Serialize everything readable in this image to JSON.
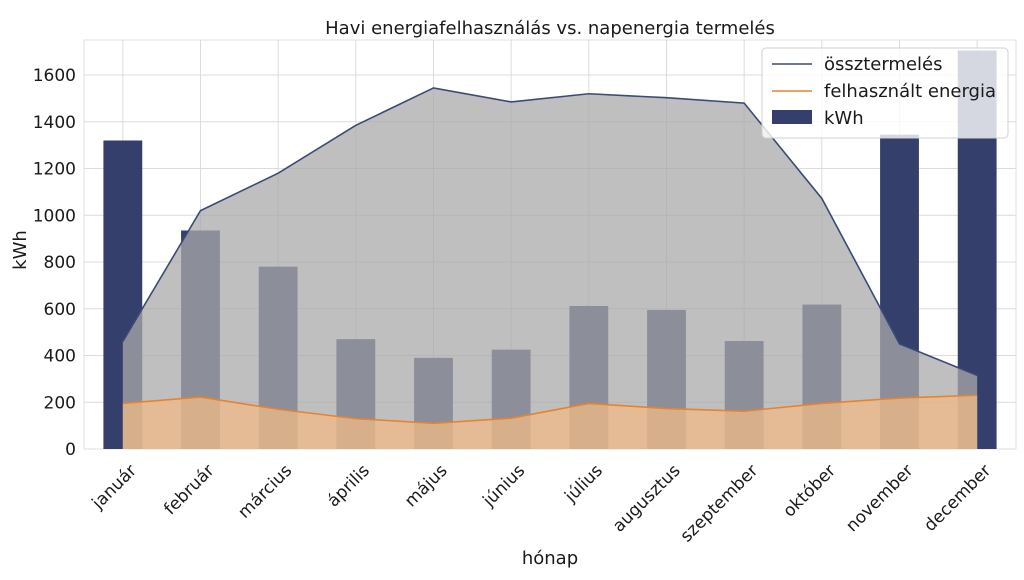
{
  "chart_data": {
    "type": "bar",
    "title": "Havi energiafelhasználás vs. napenergia termelés",
    "xlabel": "hónap",
    "ylabel": "kWh",
    "ylim": [
      0,
      1750
    ],
    "yticks": [
      0,
      200,
      400,
      600,
      800,
      1000,
      1200,
      1400,
      1600
    ],
    "grid": true,
    "legend_position": "top-right",
    "categories": [
      "január",
      "február",
      "március",
      "április",
      "május",
      "június",
      "július",
      "augusztus",
      "szeptember",
      "október",
      "november",
      "december"
    ],
    "series": [
      {
        "name": "kWh",
        "kind": "bar",
        "color": "#343f6b",
        "values": [
          1320,
          935,
          780,
          470,
          390,
          425,
          612,
          595,
          462,
          618,
          1345,
          1705
        ]
      },
      {
        "name": "össztermelés",
        "kind": "area-line",
        "color": "#3b4a78",
        "fill": "#a9a9a9",
        "values": [
          460,
          1020,
          1180,
          1385,
          1545,
          1485,
          1520,
          1503,
          1480,
          1072,
          450,
          315
        ]
      },
      {
        "name": "felhasznált energia",
        "kind": "area-line",
        "color": "#e8822e",
        "fill": "#f0b985",
        "values": [
          195,
          222,
          170,
          130,
          110,
          132,
          195,
          173,
          162,
          195,
          218,
          230
        ]
      }
    ]
  }
}
